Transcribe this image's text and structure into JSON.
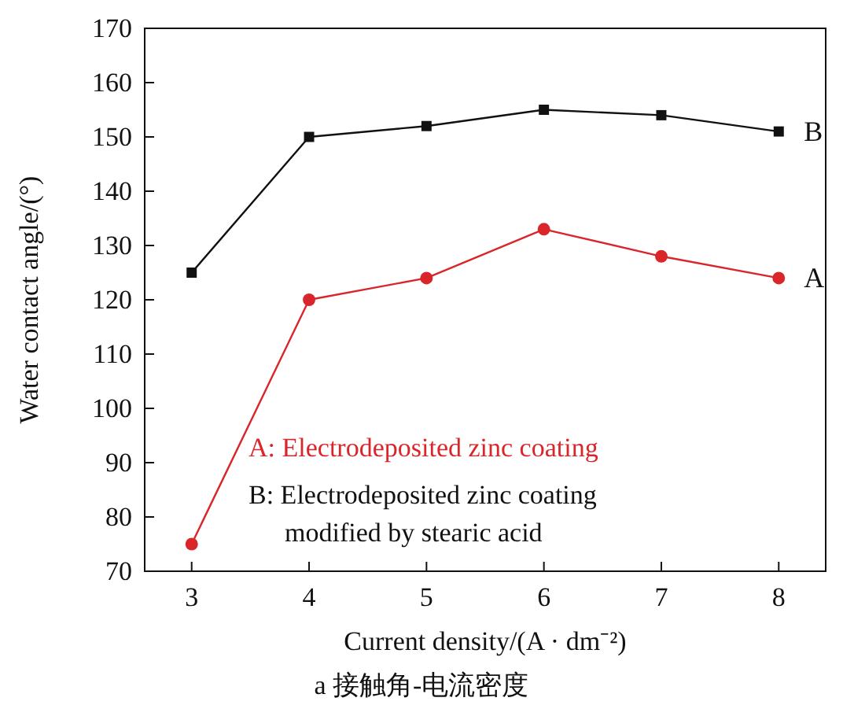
{
  "chart_data": {
    "type": "line",
    "title": "a 接触角-电流密度",
    "xlabel": "Current density/(A · dm⁻²)",
    "ylabel": "Water contact angle/(°)",
    "x": [
      3,
      4,
      5,
      6,
      7,
      8
    ],
    "series": [
      {
        "name": "A",
        "color": "#d9262b",
        "marker": "circle",
        "values": [
          75,
          120,
          124,
          133,
          128,
          124
        ]
      },
      {
        "name": "B",
        "color": "#111111",
        "marker": "square",
        "values": [
          125,
          150,
          152,
          155,
          154,
          151
        ]
      }
    ],
    "annotations": [
      "A: Electrodeposited zinc coating",
      "B: Electrodeposited zinc coating modified by stearic acid"
    ],
    "xlim": [
      2.6,
      8.4
    ],
    "xticks": [
      3,
      4,
      5,
      6,
      7,
      8
    ],
    "ylim": [
      70,
      170
    ],
    "yticks": [
      70,
      80,
      90,
      100,
      110,
      120,
      130,
      140,
      150,
      160,
      170
    ],
    "grid": false
  }
}
